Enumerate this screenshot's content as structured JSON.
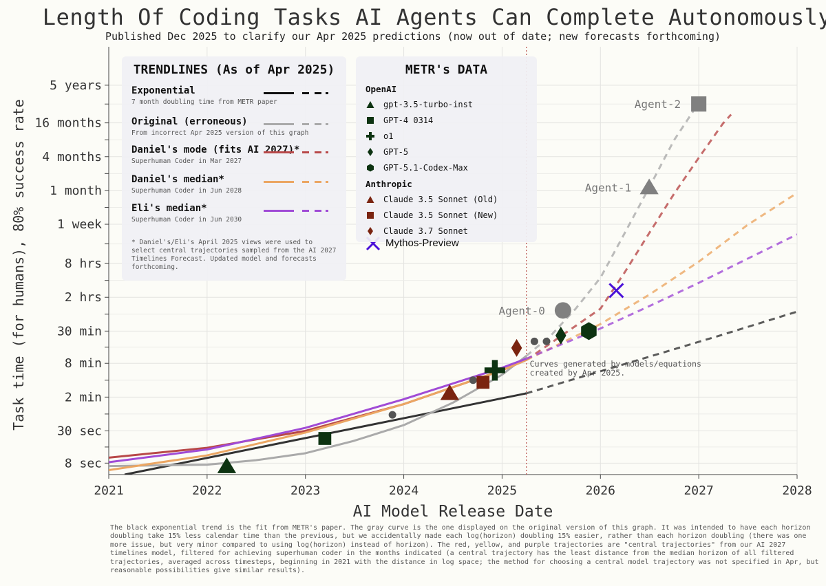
{
  "title": "Length Of Coding Tasks AI Agents Can Complete Autonomously",
  "subtitle": "Published Dec 2025 to clarify our Apr 2025 predictions (now out of date; new forecasts forthcoming)",
  "footnote": "The black exponential trend is the fit from METR's paper. The gray curve is the one displayed on the original version of this graph. It was intended to have each horizon doubling take 15% less calendar time than the previous, but we accidentally made each log(horizon) doubling 15% easier, rather than each horizon doubling (there was one more issue, but very minor compared to using log(horizon) instead of horizon). The red, yellow, and purple trajectories are \"central trajectories\" from our AI 2027 timelines model, filtered for achieving superhuman coder in the months indicated (a central trajectory has the least distance from the median horizon of all filtered trajectories, averaged across timesteps, beginning in 2021 with the distance in log space; the method for choosing a central model trajectory was not specified in Apr, but reasonable possibilities give similar results).",
  "trend_legend": {
    "title": "TRENDLINES (As of Apr 2025)",
    "items": [
      {
        "name": "Exponential",
        "desc": "7 month doubling time from METR paper",
        "color": "#111111"
      },
      {
        "name": "Original (erroneous)",
        "desc": "From incorrect Apr 2025 version of this graph",
        "color": "#aaaaaa"
      },
      {
        "name": "Daniel's mode (fits AI 2027)*",
        "desc": "Superhuman Coder in Mar 2027",
        "color": "#b84848"
      },
      {
        "name": "Daniel's median*",
        "desc": "Superhuman Coder in Jun 2028",
        "color": "#eba663"
      },
      {
        "name": "Eli's median*",
        "desc": "Superhuman Coder in Jun 2030",
        "color": "#a04bd6"
      }
    ],
    "note": "* Daniel's/Eli's April 2025 views were used to select central trajectories sampled from the AI 2027 Timelines Forecast. Updated model and forecasts forthcoming."
  },
  "metr_legend": {
    "title": "METR's DATA",
    "groups": [
      {
        "name": "OpenAI",
        "items": [
          {
            "label": "gpt-3.5-turbo-inst",
            "marker": "triangle",
            "color": "#0d3311"
          },
          {
            "label": "GPT-4 0314",
            "marker": "square",
            "color": "#0d3311"
          },
          {
            "label": "o1",
            "marker": "plus",
            "color": "#0d3311"
          },
          {
            "label": "GPT-5",
            "marker": "diamond",
            "color": "#0d3311"
          },
          {
            "label": "GPT-5.1-Codex-Max",
            "marker": "hexagon",
            "color": "#0d3311"
          }
        ]
      },
      {
        "name": "Anthropic",
        "items": [
          {
            "label": "Claude 3.5 Sonnet (Old)",
            "marker": "triangle",
            "color": "#7a2410"
          },
          {
            "label": "Claude 3.5 Sonnet (New)",
            "marker": "square",
            "color": "#7a2410"
          },
          {
            "label": "Claude 3.7 Sonnet",
            "marker": "diamond",
            "color": "#7a2410"
          }
        ]
      }
    ],
    "extra": {
      "label": "Mythos-Preview",
      "marker": "x",
      "color": "#4a10d8"
    }
  },
  "annotation": "Curves generated by models/equations\ncreated by Apr 2025.",
  "chart_data": {
    "type": "scatter",
    "xlabel": "AI Model Release Date",
    "ylabel": "Task time (for humans), 80% success rate",
    "xlim": [
      "2021-01-01",
      "2028-01-01"
    ],
    "x_ticks": [
      "2021",
      "2022",
      "2023",
      "2024",
      "2025",
      "2026",
      "2027",
      "2028"
    ],
    "y_scale": "log",
    "y_unit": "seconds",
    "ylim": [
      5,
      209000000
    ],
    "y_ticks": [
      {
        "label": "8 sec",
        "value": 8
      },
      {
        "label": "30 sec",
        "value": 30
      },
      {
        "label": "2 min",
        "value": 120
      },
      {
        "label": "8 min",
        "value": 480
      },
      {
        "label": "30 min",
        "value": 1800
      },
      {
        "label": "2 hrs",
        "value": 7200
      },
      {
        "label": "8 hrs",
        "value": 28800
      },
      {
        "label": "1 week",
        "value": 144000
      },
      {
        "label": "1 month",
        "value": 576000
      },
      {
        "label": "4 months",
        "value": 2304000
      },
      {
        "label": "16 months",
        "value": 9216000
      },
      {
        "label": "5 years",
        "value": 43200000
      }
    ],
    "vline": {
      "x": "2025-04-01",
      "style": "dotted",
      "color": "#c0645f"
    },
    "grid": true,
    "points": [
      {
        "label": "gpt-3.5-turbo-inst",
        "x": "2022-03-15",
        "y": 7,
        "marker": "triangle",
        "color": "#0d3311"
      },
      {
        "label": "GPT-4 0314",
        "x": "2023-03-14",
        "y": 22,
        "marker": "square",
        "color": "#0d3311"
      },
      {
        "label": "o1",
        "x": "2024-12-05",
        "y": 360,
        "marker": "plus",
        "color": "#0d3311"
      },
      {
        "label": "GPT-5",
        "x": "2025-08-07",
        "y": 1500,
        "marker": "diamond",
        "color": "#0d3311"
      },
      {
        "label": "GPT-5.1-Codex-Max",
        "x": "2025-11-19",
        "y": 1800,
        "marker": "hexagon",
        "color": "#0d3311"
      },
      {
        "label": "Claude 3.5 Sonnet (Old)",
        "x": "2024-06-20",
        "y": 140,
        "marker": "triangle",
        "color": "#7a2410"
      },
      {
        "label": "Claude 3.5 Sonnet (New)",
        "x": "2024-10-22",
        "y": 220,
        "marker": "square",
        "color": "#7a2410"
      },
      {
        "label": "Claude 3.7 Sonnet",
        "x": "2025-02-24",
        "y": 900,
        "marker": "diamond",
        "color": "#7a2410"
      },
      {
        "label": "Mythos-Preview",
        "x": "2026-03-01",
        "y": 9500,
        "marker": "x",
        "color": "#4a10d8"
      }
    ],
    "other_points": [
      {
        "x": "2023-11-20",
        "y": 58
      },
      {
        "x": "2024-09-15",
        "y": 240
      },
      {
        "x": "2025-05-01",
        "y": 1180
      },
      {
        "x": "2025-06-15",
        "y": 1180
      }
    ],
    "agents": [
      {
        "label": "Agent-0",
        "x": "2025-08-15",
        "y": 4200,
        "marker": "circle",
        "color": "#808080"
      },
      {
        "label": "Agent-1",
        "x": "2026-07-01",
        "y": 650000,
        "marker": "triangle",
        "color": "#808080"
      },
      {
        "label": "Agent-2",
        "x": "2027-01-01",
        "y": 20000000,
        "marker": "square",
        "color": "#808080"
      }
    ],
    "series": [
      {
        "name": "Exponential",
        "color": "#333333",
        "split_x": "2025-04-01",
        "x": [
          "2021-03-01",
          "2022-03-01",
          "2023-03-01",
          "2024-03-01",
          "2025-04-01",
          "2026-04-01",
          "2027-04-01",
          "2028-01-01"
        ],
        "y": [
          5,
          11.3,
          25.5,
          57.7,
          140,
          465,
          1560,
          4000
        ]
      },
      {
        "name": "Original (erroneous)",
        "color": "#aaaaaa",
        "split_x": "2025-04-01",
        "x": [
          "2021-01-01",
          "2022-01-01",
          "2022-07-01",
          "2023-01-01",
          "2023-07-01",
          "2024-01-01",
          "2024-07-01",
          "2025-01-01",
          "2025-04-01",
          "2025-07-01",
          "2025-10-01",
          "2026-01-01",
          "2026-04-01",
          "2026-07-01",
          "2026-10-01",
          "2027-01-01"
        ],
        "y": [
          7.1,
          7.5,
          9,
          12,
          20,
          38,
          95,
          300,
          650,
          1500,
          4500,
          16000,
          100000,
          650000,
          4500000,
          21000000
        ]
      },
      {
        "name": "Daniel's mode (fits AI 2027)*",
        "color": "#b84848",
        "split_x": "2025-04-01",
        "x": [
          "2021-01-01",
          "2022-01-01",
          "2023-01-01",
          "2024-01-01",
          "2025-01-01",
          "2025-04-01",
          "2025-07-01",
          "2026-01-01",
          "2026-04-01",
          "2026-07-01",
          "2026-10-01",
          "2027-01-01",
          "2027-04-01",
          "2027-05-01"
        ],
        "y": [
          10,
          15,
          30,
          90,
          360,
          550,
          1100,
          4500,
          20000,
          100000,
          500000,
          2200000,
          9000000,
          13000000
        ]
      },
      {
        "name": "Daniel's median*",
        "color": "#eba663",
        "split_x": "2025-04-01",
        "x": [
          "2021-01-01",
          "2022-01-01",
          "2023-01-01",
          "2024-01-01",
          "2025-01-01",
          "2025-04-01",
          "2026-01-01",
          "2026-07-01",
          "2027-01-01",
          "2027-07-01",
          "2028-01-01"
        ],
        "y": [
          6,
          11,
          28,
          90,
          360,
          550,
          2400,
          8000,
          31000,
          140000,
          520000
        ]
      },
      {
        "name": "Eli's median*",
        "color": "#a04bd6",
        "split_x": "2025-04-01",
        "x": [
          "2021-01-01",
          "2022-01-01",
          "2023-01-01",
          "2024-01-01",
          "2025-01-01",
          "2025-04-01",
          "2026-01-01",
          "2026-07-01",
          "2027-01-01",
          "2027-07-01",
          "2028-01-01"
        ],
        "y": [
          8.3,
          14,
          34,
          110,
          400,
          580,
          2000,
          5000,
          13000,
          35000,
          95000
        ]
      }
    ]
  }
}
